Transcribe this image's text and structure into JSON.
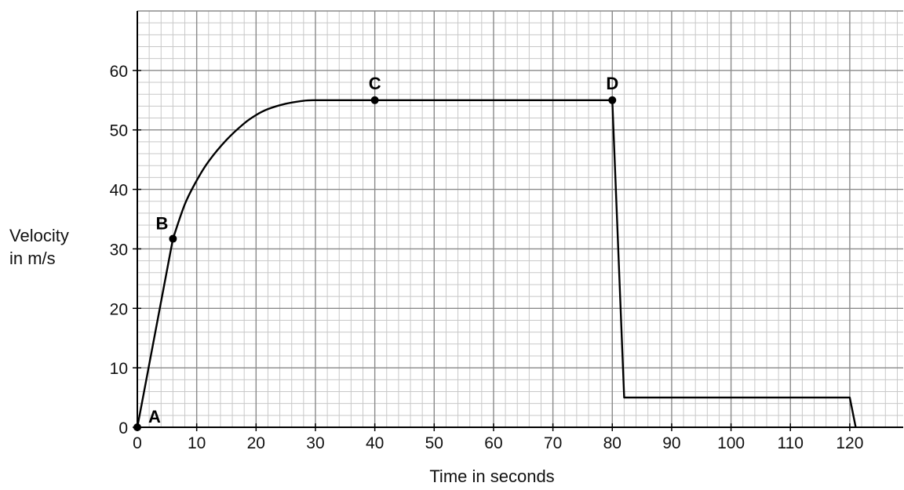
{
  "chart_data": {
    "type": "line",
    "title": "",
    "xlabel": "Time in seconds",
    "ylabel_lines": [
      "Velocity",
      "in m/s"
    ],
    "xlim": [
      0,
      129
    ],
    "ylim": [
      0,
      70
    ],
    "x_ticks": [
      0,
      10,
      20,
      30,
      40,
      50,
      60,
      70,
      80,
      90,
      100,
      110,
      120
    ],
    "y_ticks": [
      0,
      10,
      20,
      30,
      40,
      50,
      60
    ],
    "grid": {
      "major_x": 10,
      "minor_x": 2,
      "major_y": 10,
      "minor_y": 2
    },
    "series": [
      {
        "x": [
          0,
          6,
          8,
          10,
          12,
          15,
          18,
          20,
          22,
          25,
          28,
          30,
          40,
          80,
          82,
          120,
          121
        ],
        "y": [
          0,
          31.7,
          37.5,
          41.5,
          44.7,
          48.3,
          51.1,
          52.5,
          53.5,
          54.4,
          54.9,
          55,
          55,
          55,
          5,
          5,
          0
        ]
      }
    ],
    "points": [
      {
        "label": "A",
        "x": 0,
        "y": 0
      },
      {
        "label": "B",
        "x": 6,
        "y": 31.7
      },
      {
        "label": "C",
        "x": 40,
        "y": 55
      },
      {
        "label": "D",
        "x": 80,
        "y": 55
      }
    ]
  }
}
